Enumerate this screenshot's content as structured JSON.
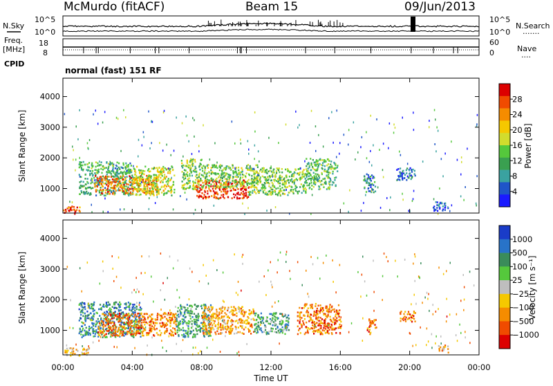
{
  "header": {
    "station": "McMurdo (fitACF)",
    "beam": "Beam 15",
    "date": "09/Jun/2013"
  },
  "noise_panel": {
    "left_label": "N.Sky",
    "left_ticks": [
      "10^5",
      "10^0"
    ],
    "right_ticks": [
      "10^5",
      "10^0"
    ],
    "right_label": "N.Search",
    "right_dots": "......."
  },
  "freq_panel": {
    "left_label_line1": "Freq.",
    "left_label_line2": "[MHz]",
    "left_ticks": [
      18,
      8
    ],
    "right_ticks": [
      60,
      0
    ],
    "right_label": "Nave",
    "right_dots": "....",
    "cpid_label": "CPID"
  },
  "cpid_text": "normal (fast) 151 RF",
  "chart_data": [
    {
      "type": "heatmap",
      "parameter": "power",
      "ylabel": "Slant Range [km]",
      "yticks": [
        1000,
        2000,
        3000,
        4000
      ],
      "ylim": [
        200,
        4600
      ],
      "xlim": [
        0,
        24
      ],
      "xticks": [
        "00:00",
        "04:00",
        "08:00",
        "12:00",
        "16:00",
        "20:00",
        "00:00"
      ],
      "colorbar": {
        "label": "Power [dB]",
        "ticks": [
          "4",
          "8",
          "12",
          "16",
          "20",
          "24",
          "28"
        ],
        "colors": [
          "#1a1aff",
          "#1f55c8",
          "#3aa2a0",
          "#3aa050",
          "#55c83c",
          "#d2dc2d",
          "#f5c800",
          "#f58c00",
          "#f04b00",
          "#dc0000"
        ]
      },
      "scatter_bands": [
        {
          "t": [
            0.9,
            4.0
          ],
          "r": [
            800,
            1900
          ],
          "v": 0.35
        },
        {
          "t": [
            1.8,
            5.5
          ],
          "r": [
            850,
            1450
          ],
          "v": 0.78
        },
        {
          "t": [
            4.0,
            6.4
          ],
          "r": [
            800,
            1750
          ],
          "v": 0.55
        },
        {
          "t": [
            6.8,
            8.0
          ],
          "r": [
            1000,
            2000
          ],
          "v": 0.45
        },
        {
          "t": [
            7.6,
            10.7
          ],
          "r": [
            700,
            1300
          ],
          "v": 0.9
        },
        {
          "t": [
            8.0,
            11.2
          ],
          "r": [
            1050,
            1800
          ],
          "v": 0.45
        },
        {
          "t": [
            10.7,
            14.0
          ],
          "r": [
            800,
            1700
          ],
          "v": 0.45
        },
        {
          "t": [
            14.0,
            15.8
          ],
          "r": [
            1000,
            2000
          ],
          "v": 0.4
        },
        {
          "t": [
            17.3,
            18.0
          ],
          "r": [
            900,
            1500
          ],
          "v": 0.25
        },
        {
          "t": [
            19.2,
            20.3
          ],
          "r": [
            1300,
            1700
          ],
          "v": 0.2
        },
        {
          "t": [
            21.3,
            22.2
          ],
          "r": [
            300,
            600
          ],
          "v": 0.12
        },
        {
          "t": [
            0.0,
            1.0
          ],
          "r": [
            200,
            450
          ],
          "v": 0.85
        }
      ]
    },
    {
      "type": "heatmap",
      "parameter": "velocity",
      "ylabel": "Slant Range [km]",
      "yticks": [
        1000,
        2000,
        3000,
        4000
      ],
      "ylim": [
        200,
        4600
      ],
      "xlim": [
        0,
        24
      ],
      "xticks": [
        "00:00",
        "04:00",
        "08:00",
        "12:00",
        "16:00",
        "20:00",
        "00:00"
      ],
      "xlabel": "Time UT",
      "colorbar": {
        "label": "Velocity [m s⁻¹]",
        "ticks": [
          "1000",
          "500",
          "100",
          "25",
          "−25",
          "−100",
          "−500",
          "−1000"
        ],
        "colors": [
          "#1a3cc8",
          "#2873c8",
          "#3a8c5a",
          "#55c83c",
          "#bebebe",
          "#f5c800",
          "#f58c00",
          "#f04b00",
          "#dc0000"
        ]
      },
      "scatter_bands": [
        {
          "t": [
            0.9,
            4.5
          ],
          "r": [
            800,
            1950
          ],
          "v": 0.25
        },
        {
          "t": [
            2.0,
            6.5
          ],
          "r": [
            850,
            1600
          ],
          "v": 0.75
        },
        {
          "t": [
            6.5,
            8.5
          ],
          "r": [
            800,
            1900
          ],
          "v": 0.3
        },
        {
          "t": [
            8.0,
            11.0
          ],
          "r": [
            900,
            1800
          ],
          "v": 0.7
        },
        {
          "t": [
            11.0,
            13.0
          ],
          "r": [
            900,
            1600
          ],
          "v": 0.3
        },
        {
          "t": [
            13.5,
            16.0
          ],
          "r": [
            900,
            1900
          ],
          "v": 0.78
        },
        {
          "t": [
            17.5,
            18.1
          ],
          "r": [
            900,
            1400
          ],
          "v": 0.78
        },
        {
          "t": [
            19.4,
            20.3
          ],
          "r": [
            1300,
            1650
          ],
          "v": 0.78
        },
        {
          "t": [
            0.0,
            1.5
          ],
          "r": [
            200,
            450
          ],
          "v": 0.6
        },
        {
          "t": [
            21.6,
            22.2
          ],
          "r": [
            300,
            550
          ],
          "v": 0.65
        }
      ]
    }
  ]
}
